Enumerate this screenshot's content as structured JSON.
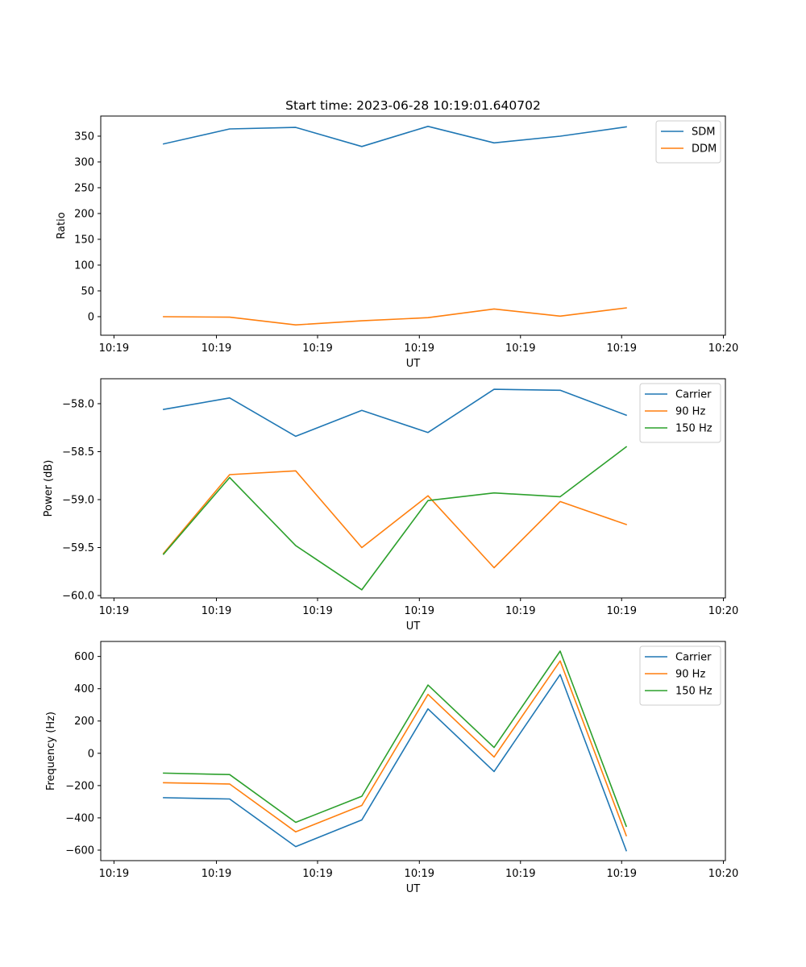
{
  "figure": {
    "title": "Start time: 2023-06-28 10:19:01.640702"
  },
  "chart_data": [
    {
      "type": "line",
      "title": "Start time: 2023-06-28 10:19:01.640702",
      "xlabel": "UT",
      "ylabel": "Ratio",
      "x": [
        1,
        2,
        3,
        4,
        5,
        6,
        7,
        8
      ],
      "x_ticks": [
        {
          "x": 0.25,
          "label": "10:19"
        },
        {
          "x": 1.8,
          "label": "10:19"
        },
        {
          "x": 3.33,
          "label": "10:19"
        },
        {
          "x": 4.87,
          "label": "10:19"
        },
        {
          "x": 6.4,
          "label": "10:19"
        },
        {
          "x": 7.93,
          "label": "10:19"
        },
        {
          "x": 9.47,
          "label": "10:20"
        }
      ],
      "xlim": [
        0.05,
        9.5
      ],
      "ylim": [
        -36,
        389
      ],
      "y_ticks": [
        0,
        50,
        100,
        150,
        200,
        250,
        300,
        350
      ],
      "legend_position": "upper-right",
      "series": [
        {
          "name": "SDM",
          "color": "#1f77b4",
          "values": [
            335,
            364,
            367,
            330,
            369,
            337,
            350,
            368
          ]
        },
        {
          "name": "DDM",
          "color": "#ff7f0e",
          "values": [
            0,
            -1,
            -16,
            -8,
            -2,
            15,
            1,
            17
          ]
        }
      ]
    },
    {
      "type": "line",
      "title": "",
      "xlabel": "UT",
      "ylabel": "Power (dB)",
      "x": [
        1,
        2,
        3,
        4,
        5,
        6,
        7,
        8
      ],
      "x_ticks": [
        {
          "x": 0.25,
          "label": "10:19"
        },
        {
          "x": 1.8,
          "label": "10:19"
        },
        {
          "x": 3.33,
          "label": "10:19"
        },
        {
          "x": 4.87,
          "label": "10:19"
        },
        {
          "x": 6.4,
          "label": "10:19"
        },
        {
          "x": 7.93,
          "label": "10:19"
        },
        {
          "x": 9.47,
          "label": "10:20"
        }
      ],
      "xlim": [
        0.05,
        9.5
      ],
      "ylim": [
        -60.025,
        -57.74
      ],
      "y_ticks": [
        -60.0,
        -59.5,
        -59.0,
        -58.5,
        -58.0
      ],
      "y_tick_labels": [
        "−60.0",
        "−59.5",
        "−59.0",
        "−58.5",
        "−58.0"
      ],
      "legend_position": "upper-right",
      "series": [
        {
          "name": "Carrier",
          "color": "#1f77b4",
          "values": [
            -58.06,
            -57.94,
            -58.34,
            -58.07,
            -58.3,
            -57.85,
            -57.86,
            -58.12
          ]
        },
        {
          "name": "90 Hz",
          "color": "#ff7f0e",
          "values": [
            -59.56,
            -58.74,
            -58.7,
            -59.5,
            -58.96,
            -59.71,
            -59.02,
            -59.26
          ]
        },
        {
          "name": "150 Hz",
          "color": "#2ca02c",
          "values": [
            -59.57,
            -58.77,
            -59.48,
            -59.94,
            -59.01,
            -58.93,
            -58.97,
            -58.45
          ]
        }
      ]
    },
    {
      "type": "line",
      "title": "",
      "xlabel": "UT",
      "ylabel": "Frequency (Hz)",
      "x": [
        1,
        2,
        3,
        4,
        5,
        6,
        7,
        8
      ],
      "x_ticks": [
        {
          "x": 0.25,
          "label": "10:19"
        },
        {
          "x": 1.8,
          "label": "10:19"
        },
        {
          "x": 3.33,
          "label": "10:19"
        },
        {
          "x": 4.87,
          "label": "10:19"
        },
        {
          "x": 6.4,
          "label": "10:19"
        },
        {
          "x": 7.93,
          "label": "10:19"
        },
        {
          "x": 9.47,
          "label": "10:20"
        }
      ],
      "xlim": [
        0.05,
        9.5
      ],
      "ylim": [
        -665,
        693
      ],
      "y_ticks": [
        -600,
        -400,
        -200,
        0,
        200,
        400,
        600
      ],
      "y_tick_labels": [
        "−600",
        "−400",
        "−200",
        "0",
        "200",
        "400",
        "600"
      ],
      "legend_position": "upper-right",
      "series": [
        {
          "name": "Carrier",
          "color": "#1f77b4",
          "values": [
            -275,
            -283,
            -578,
            -413,
            275,
            -113,
            488,
            -603
          ]
        },
        {
          "name": "90 Hz",
          "color": "#ff7f0e",
          "values": [
            -182,
            -190,
            -487,
            -323,
            365,
            -23,
            572,
            -510
          ]
        },
        {
          "name": "150 Hz",
          "color": "#2ca02c",
          "values": [
            -123,
            -132,
            -428,
            -266,
            423,
            36,
            633,
            -452
          ]
        }
      ]
    }
  ]
}
